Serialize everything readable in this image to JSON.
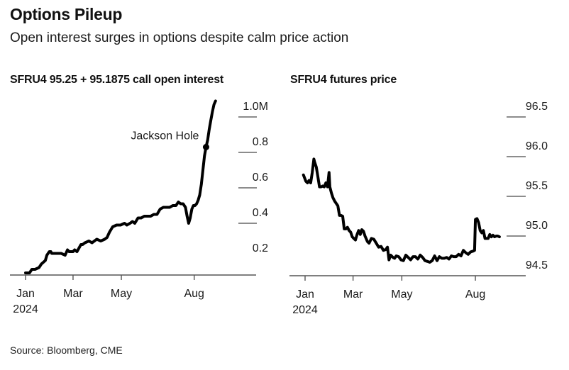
{
  "header": {
    "title": "Options Pileup",
    "subtitle": "Open interest surges in options despite calm price action"
  },
  "footer": {
    "source": "Source: Bloomberg, CME"
  },
  "chart_data": [
    {
      "type": "line",
      "title": "SFRU4 95.25 + 95.1875 call open interest",
      "xlabel": "",
      "ylabel": "",
      "x_unit": "day of year 2024",
      "x_ticks": [
        {
          "label": "Jan",
          "sublabel": "2024",
          "day": 0
        },
        {
          "label": "Mar",
          "sublabel": "",
          "day": 60
        },
        {
          "label": "May",
          "sublabel": "",
          "day": 121
        },
        {
          "label": "Aug",
          "sublabel": "",
          "day": 213
        }
      ],
      "xlim": [
        -20,
        292
      ],
      "y_ticks": [
        {
          "label": "1.0M",
          "value": 1.0
        },
        {
          "label": "0.8",
          "value": 0.8
        },
        {
          "label": "0.6",
          "value": 0.6
        },
        {
          "label": "0.4",
          "value": 0.4
        },
        {
          "label": "0.2",
          "value": 0.2
        }
      ],
      "ylim": [
        0.11,
        1.1
      ],
      "y_unit": "millions of contracts",
      "grid": "tick-dashes-under-labels",
      "series": [
        {
          "name": "Call open interest",
          "x": [
            0,
            5,
            8,
            12,
            17,
            20,
            25,
            27,
            30,
            32,
            33,
            35,
            40,
            45,
            50,
            53,
            55,
            58,
            60,
            62,
            65,
            70,
            72,
            75,
            80,
            84,
            87,
            90,
            95,
            100,
            103,
            106,
            110,
            115,
            120,
            125,
            128,
            132,
            135,
            138,
            142,
            146,
            150,
            154,
            158,
            162,
            166,
            170,
            174,
            178,
            182,
            186,
            190,
            193,
            196,
            199,
            202,
            204,
            206,
            208,
            210,
            212,
            214,
            216,
            218,
            220,
            222,
            224,
            226,
            228,
            230,
            232,
            234,
            236,
            238,
            240
          ],
          "y": [
            0.12,
            0.12,
            0.14,
            0.14,
            0.15,
            0.17,
            0.19,
            0.22,
            0.24,
            0.24,
            0.23,
            0.23,
            0.23,
            0.23,
            0.22,
            0.25,
            0.24,
            0.24,
            0.24,
            0.25,
            0.24,
            0.28,
            0.28,
            0.29,
            0.3,
            0.29,
            0.3,
            0.31,
            0.3,
            0.31,
            0.32,
            0.35,
            0.38,
            0.39,
            0.39,
            0.4,
            0.39,
            0.4,
            0.41,
            0.4,
            0.43,
            0.43,
            0.44,
            0.44,
            0.44,
            0.45,
            0.45,
            0.48,
            0.49,
            0.49,
            0.49,
            0.5,
            0.5,
            0.52,
            0.51,
            0.51,
            0.49,
            0.44,
            0.4,
            0.43,
            0.48,
            0.5,
            0.5,
            0.51,
            0.53,
            0.56,
            0.62,
            0.7,
            0.78,
            0.83,
            0.87,
            0.93,
            0.98,
            1.03,
            1.07,
            1.09
          ]
        }
      ],
      "annotations": [
        {
          "label": "Jackson Hole",
          "x": 228,
          "y": 0.83,
          "marker": "dot"
        }
      ]
    },
    {
      "type": "line",
      "title": "SFRU4 futures price",
      "xlabel": "",
      "ylabel": "",
      "x_unit": "day of year 2024",
      "x_ticks": [
        {
          "label": "Jan",
          "sublabel": "2024",
          "day": 0
        },
        {
          "label": "Mar",
          "sublabel": "",
          "day": 60
        },
        {
          "label": "May",
          "sublabel": "",
          "day": 121
        },
        {
          "label": "Aug",
          "sublabel": "",
          "day": 213
        }
      ],
      "xlim": [
        -20,
        275
      ],
      "y_ticks": [
        {
          "label": "96.5",
          "value": 96.5
        },
        {
          "label": "96.0",
          "value": 96.0
        },
        {
          "label": "95.5",
          "value": 95.5
        },
        {
          "label": "95.0",
          "value": 95.0
        },
        {
          "label": "94.5",
          "value": 94.5
        }
      ],
      "ylim": [
        94.5,
        96.7
      ],
      "grid": "tick-dashes-under-labels",
      "series": [
        {
          "name": "Futures price",
          "x": [
            -2,
            1,
            3,
            5,
            7,
            9,
            11,
            12,
            14,
            16,
            18,
            20,
            22,
            24,
            26,
            28,
            30,
            31,
            33,
            35,
            37,
            39,
            41,
            43,
            45,
            47,
            49,
            51,
            53,
            55,
            57,
            59,
            61,
            63,
            65,
            67,
            69,
            71,
            73,
            75,
            78,
            80,
            83,
            86,
            89,
            92,
            95,
            98,
            101,
            103,
            105,
            107,
            110,
            112,
            114,
            117,
            120,
            123,
            126,
            129,
            132,
            135,
            138,
            141,
            144,
            147,
            150,
            153,
            156,
            159,
            162,
            165,
            168,
            171,
            174,
            177,
            180,
            183,
            186,
            189,
            192,
            195,
            198,
            201,
            204,
            207,
            210,
            212,
            213,
            215,
            217,
            219,
            221,
            223,
            225,
            227,
            229,
            231,
            233,
            235,
            237,
            239,
            241,
            243
          ],
          "y": [
            95.77,
            95.69,
            95.67,
            95.7,
            95.67,
            95.8,
            95.97,
            95.93,
            95.87,
            95.75,
            95.62,
            95.62,
            95.63,
            95.62,
            95.67,
            95.62,
            95.8,
            95.62,
            95.54,
            95.48,
            95.44,
            95.41,
            95.38,
            95.26,
            95.26,
            95.25,
            95.09,
            95.09,
            95.11,
            95.07,
            95.05,
            94.99,
            94.97,
            94.95,
            95.02,
            95.07,
            95.02,
            95.08,
            95.06,
            95.0,
            94.93,
            94.91,
            94.97,
            94.96,
            94.91,
            94.86,
            94.87,
            94.82,
            94.83,
            94.86,
            94.7,
            94.76,
            94.73,
            94.72,
            94.75,
            94.74,
            94.7,
            94.69,
            94.76,
            94.73,
            94.7,
            94.74,
            94.74,
            94.71,
            94.76,
            94.73,
            94.69,
            94.68,
            94.67,
            94.69,
            94.75,
            94.69,
            94.74,
            94.72,
            94.72,
            94.73,
            94.71,
            94.75,
            94.74,
            94.74,
            94.77,
            94.75,
            94.82,
            94.79,
            94.77,
            94.8,
            94.81,
            94.82,
            95.21,
            95.22,
            95.17,
            95.07,
            95.04,
            95.07,
            94.97,
            94.97,
            94.97,
            95.02,
            94.99,
            95.01,
            94.99,
            95.0,
            95.0,
            94.99
          ]
        }
      ]
    }
  ]
}
